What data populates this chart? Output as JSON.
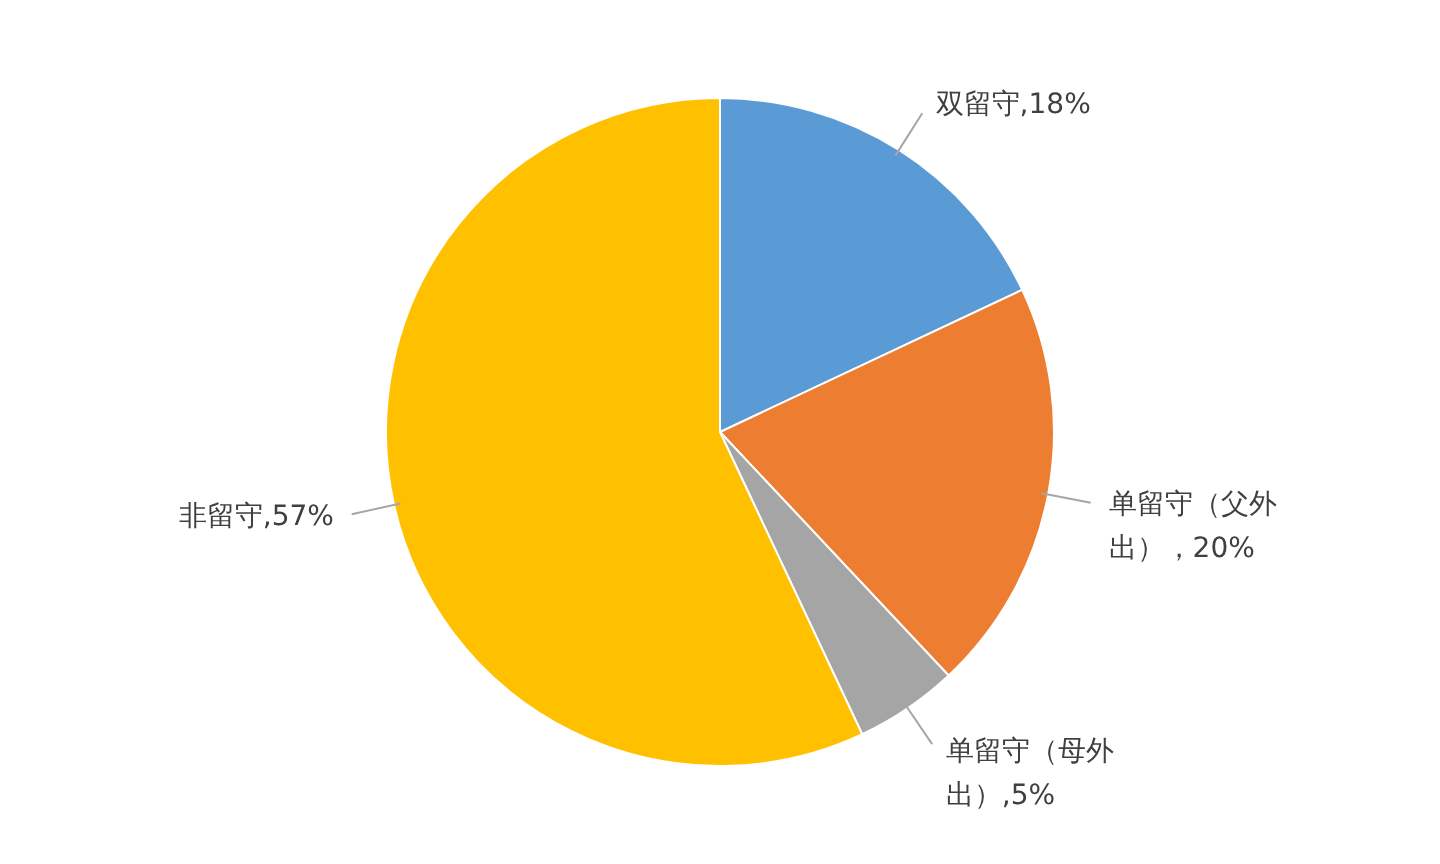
{
  "chart_data": {
    "type": "pie",
    "categories": [
      "双留守",
      "单留守（父外出）",
      "单留守（母外出）",
      "非留守"
    ],
    "values": [
      18,
      20,
      5,
      57
    ],
    "colors": [
      "#5b9bd5",
      "#ed7d31",
      "#a5a5a5",
      "#ffc000"
    ],
    "value_labels": [
      ",18%",
      "，20%",
      ",5%",
      ",57%"
    ]
  }
}
